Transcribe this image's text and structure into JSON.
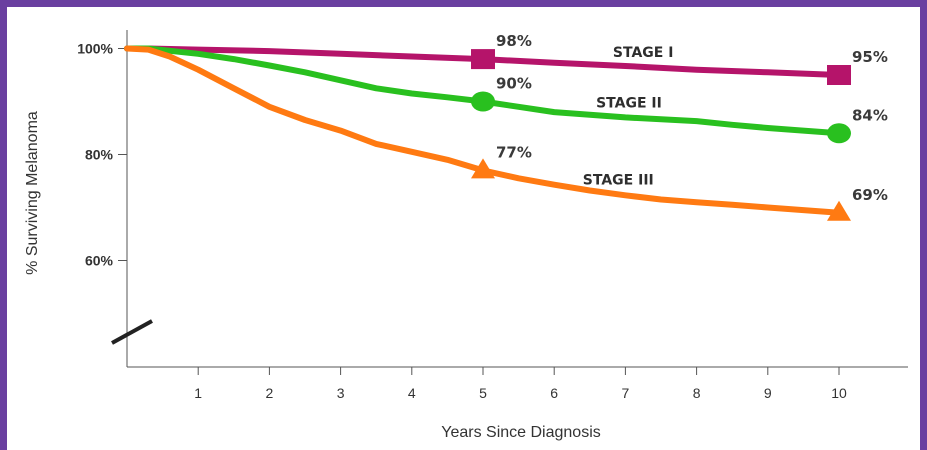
{
  "chart_data": {
    "type": "line",
    "title": "",
    "xlabel": "Years Since Diagnosis",
    "ylabel": "% Surviving Melanoma",
    "xlim": [
      0,
      11
    ],
    "ylim": [
      45,
      100
    ],
    "x_ticks": [
      "1",
      "2",
      "3",
      "4",
      "5",
      "6",
      "7",
      "8",
      "9",
      "10"
    ],
    "y_ticks": [
      {
        "value": 100,
        "label": "100%"
      },
      {
        "value": 80,
        "label": "80%"
      },
      {
        "value": 60,
        "label": "60%"
      }
    ],
    "axis_break": true,
    "grid": false,
    "series": [
      {
        "name": "STAGE I",
        "color": "#b5146a",
        "marker": "square",
        "x": [
          0,
          0.3,
          1,
          2,
          3,
          4,
          5,
          6,
          7,
          8,
          9,
          10
        ],
        "y": [
          100,
          100,
          99.8,
          99.5,
          99,
          98.5,
          98,
          97.3,
          96.7,
          96,
          95.5,
          95
        ],
        "annotations": [
          {
            "x": 5,
            "y": 98,
            "label": "98%"
          },
          {
            "x": 10,
            "y": 95,
            "label": "95%"
          }
        ]
      },
      {
        "name": "STAGE II",
        "color": "#29c01f",
        "marker": "circle",
        "x": [
          0,
          0.3,
          1,
          1.5,
          2,
          2.5,
          3,
          3.5,
          4,
          4.5,
          5,
          5.5,
          6,
          7,
          8,
          8.5,
          9,
          10
        ],
        "y": [
          100,
          100,
          99,
          98,
          96.8,
          95.5,
          94,
          92.5,
          91.5,
          90.8,
          90,
          89,
          88,
          87,
          86.3,
          85.6,
          85,
          84
        ],
        "annotations": [
          {
            "x": 5,
            "y": 90,
            "label": "90%"
          },
          {
            "x": 10,
            "y": 84,
            "label": "84%"
          }
        ]
      },
      {
        "name": "STAGE III",
        "color": "#ff7a12",
        "marker": "triangle",
        "x": [
          0,
          0.3,
          0.6,
          1,
          1.5,
          2,
          2.5,
          3,
          3.5,
          4,
          4.5,
          5,
          5.5,
          6,
          6.5,
          7,
          7.5,
          8,
          8.5,
          9,
          10
        ],
        "y": [
          100,
          99.8,
          98.5,
          96,
          92.5,
          89,
          86.5,
          84.5,
          82,
          80.5,
          79,
          77,
          75.5,
          74.3,
          73.2,
          72.3,
          71.5,
          71,
          70.5,
          70,
          69
        ],
        "annotations": [
          {
            "x": 5,
            "y": 77,
            "label": "77%"
          },
          {
            "x": 10,
            "y": 69,
            "label": "69%"
          }
        ]
      }
    ]
  }
}
